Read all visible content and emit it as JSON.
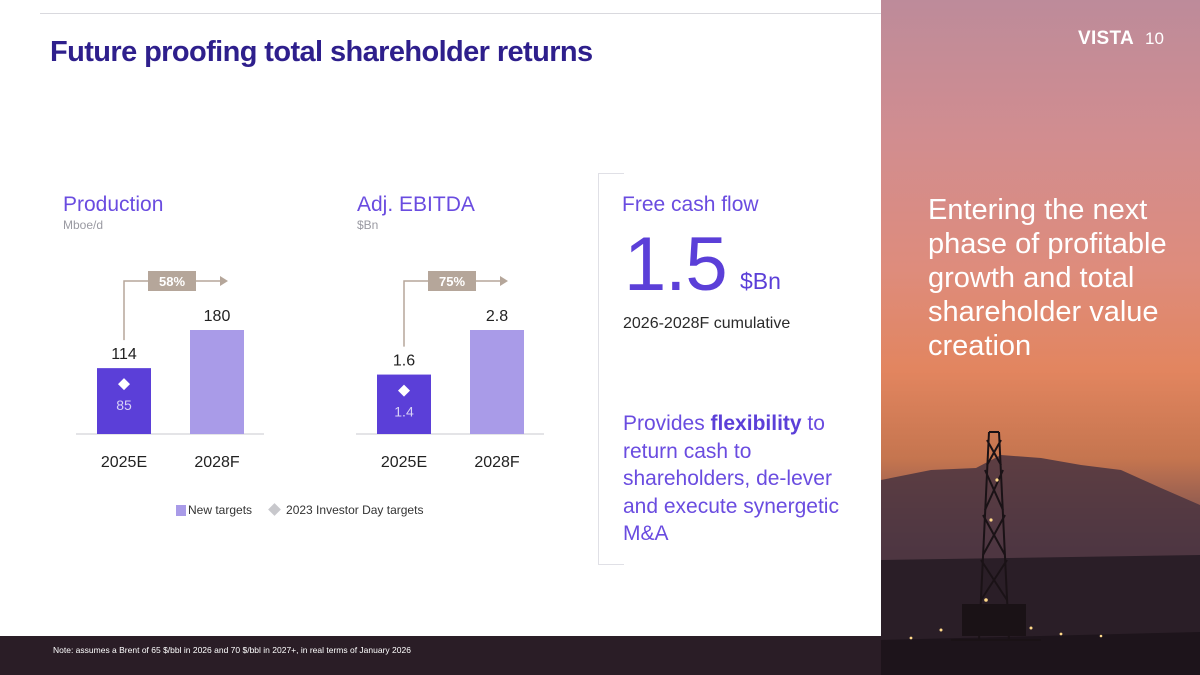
{
  "header": {
    "title": "Future proofing total shareholder returns",
    "brand": "VISTA",
    "page_number": "10"
  },
  "side": {
    "headline": "Entering the next phase of profitable growth and total shareholder value creation"
  },
  "colors": {
    "title": "#2e1f8c",
    "accent": "#6a4ce0",
    "bar_2025": "#5b3fd8",
    "bar_2028": "#a99be8",
    "growth_badge": "#b5a69a",
    "marker": "#ffffff"
  },
  "chart_data": [
    {
      "type": "bar",
      "title": "Production",
      "unit": "Mboe/d",
      "categories": [
        "2025E",
        "2028F"
      ],
      "series": [
        {
          "name": "New targets",
          "values": [
            114,
            180
          ]
        },
        {
          "name": "2023 Investor Day targets",
          "values": [
            85,
            null
          ]
        }
      ],
      "growth_label": "58%",
      "ylim": [
        0,
        180
      ]
    },
    {
      "type": "bar",
      "title": "Adj. EBITDA",
      "unit": "$Bn",
      "categories": [
        "2025E",
        "2028F"
      ],
      "series": [
        {
          "name": "New targets",
          "values": [
            1.6,
            2.8
          ]
        },
        {
          "name": "2023 Investor Day targets",
          "values": [
            1.4,
            null
          ]
        }
      ],
      "growth_label": "75%",
      "ylim": [
        0,
        2.8
      ]
    }
  ],
  "legend": {
    "new_targets": "New targets",
    "investor_day": "2023 Investor Day targets"
  },
  "fcf": {
    "title": "Free cash flow",
    "value": "1.5",
    "unit": "$Bn",
    "subtitle": "2026-2028F cumulative",
    "text_pre": "Provides ",
    "text_bold": "flexibility",
    "text_post": " to return cash to shareholders, de-lever and execute synergetic M&A"
  },
  "footer": {
    "note": "Note: assumes a Brent of 65 $/bbl in 2026 and 70 $/bbl in 2027+, in real terms of January 2026"
  }
}
